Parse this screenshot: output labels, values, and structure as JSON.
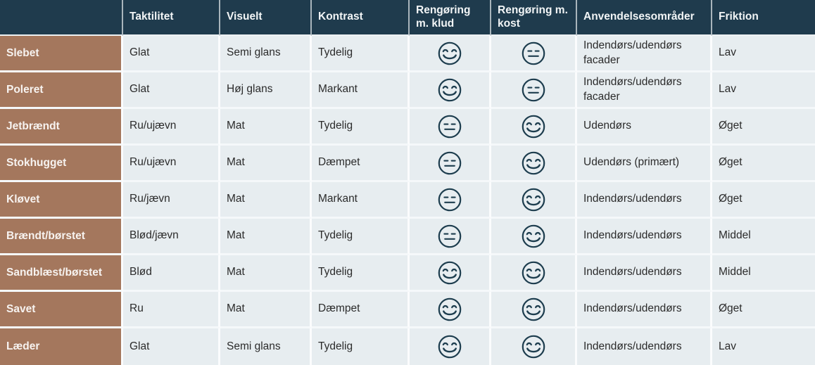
{
  "colors": {
    "header_bg": "#1f3b4d",
    "header_text": "#f2f5f6",
    "row_header_bg": "#a4775d",
    "row_header_text": "#f7f3f0",
    "cell_bg": "#e7edf0",
    "cell_text": "#2b2b2b",
    "face_stroke": "#1d3d4e"
  },
  "icons": {
    "happy": "smiling-face-icon",
    "neutral": "neutral-face-icon"
  },
  "table": {
    "columns": [
      {
        "label": ""
      },
      {
        "label": "Taktilitet"
      },
      {
        "label": "Visuelt"
      },
      {
        "label": "Kontrast"
      },
      {
        "label": "Rengøring m. klud"
      },
      {
        "label": "Rengøring m. kost"
      },
      {
        "label": "Anvendelsesområder"
      },
      {
        "label": "Friktion"
      }
    ],
    "rows": [
      {
        "name": "Slebet",
        "taktilitet": "Glat",
        "visuelt": "Semi glans",
        "kontrast": "Tydelig",
        "klud": "happy",
        "kost": "neutral",
        "anvendelse": "Indendørs/udendørs facader",
        "friktion": "Lav"
      },
      {
        "name": "Poleret",
        "taktilitet": "Glat",
        "visuelt": "Høj glans",
        "kontrast": "Markant",
        "klud": "happy",
        "kost": "neutral",
        "anvendelse": "Indendørs/udendørs facader",
        "friktion": "Lav"
      },
      {
        "name": "Jetbrændt",
        "taktilitet": "Ru/ujævn",
        "visuelt": "Mat",
        "kontrast": "Tydelig",
        "klud": "neutral",
        "kost": "happy",
        "anvendelse": "Udendørs",
        "friktion": "Øget"
      },
      {
        "name": "Stokhugget",
        "taktilitet": "Ru/ujævn",
        "visuelt": "Mat",
        "kontrast": "Dæmpet",
        "klud": "neutral",
        "kost": "happy",
        "anvendelse": "Udendørs (primært)",
        "friktion": "Øget"
      },
      {
        "name": "Kløvet",
        "taktilitet": "Ru/jævn",
        "visuelt": "Mat",
        "kontrast": "Markant",
        "klud": "neutral",
        "kost": "happy",
        "anvendelse": "Indendørs/udendørs",
        "friktion": "Øget"
      },
      {
        "name": "Brændt/børstet",
        "taktilitet": "Blød/jævn",
        "visuelt": "Mat",
        "kontrast": "Tydelig",
        "klud": "neutral",
        "kost": "happy",
        "anvendelse": "Indendørs/udendørs",
        "friktion": "Middel"
      },
      {
        "name": "Sandblæst/børstet",
        "taktilitet": "Blød",
        "visuelt": "Mat",
        "kontrast": "Tydelig",
        "klud": "happy",
        "kost": "happy",
        "anvendelse": "Indendørs/udendørs",
        "friktion": "Middel"
      },
      {
        "name": "Savet",
        "taktilitet": "Ru",
        "visuelt": "Mat",
        "kontrast": "Dæmpet",
        "klud": "happy",
        "kost": "happy",
        "anvendelse": "Indendørs/udendørs",
        "friktion": "Øget"
      },
      {
        "name": "Læder",
        "taktilitet": "Glat",
        "visuelt": "Semi glans",
        "kontrast": "Tydelig",
        "klud": "happy",
        "kost": "happy",
        "anvendelse": "Indendørs/udendørs",
        "friktion": "Lav"
      }
    ]
  }
}
